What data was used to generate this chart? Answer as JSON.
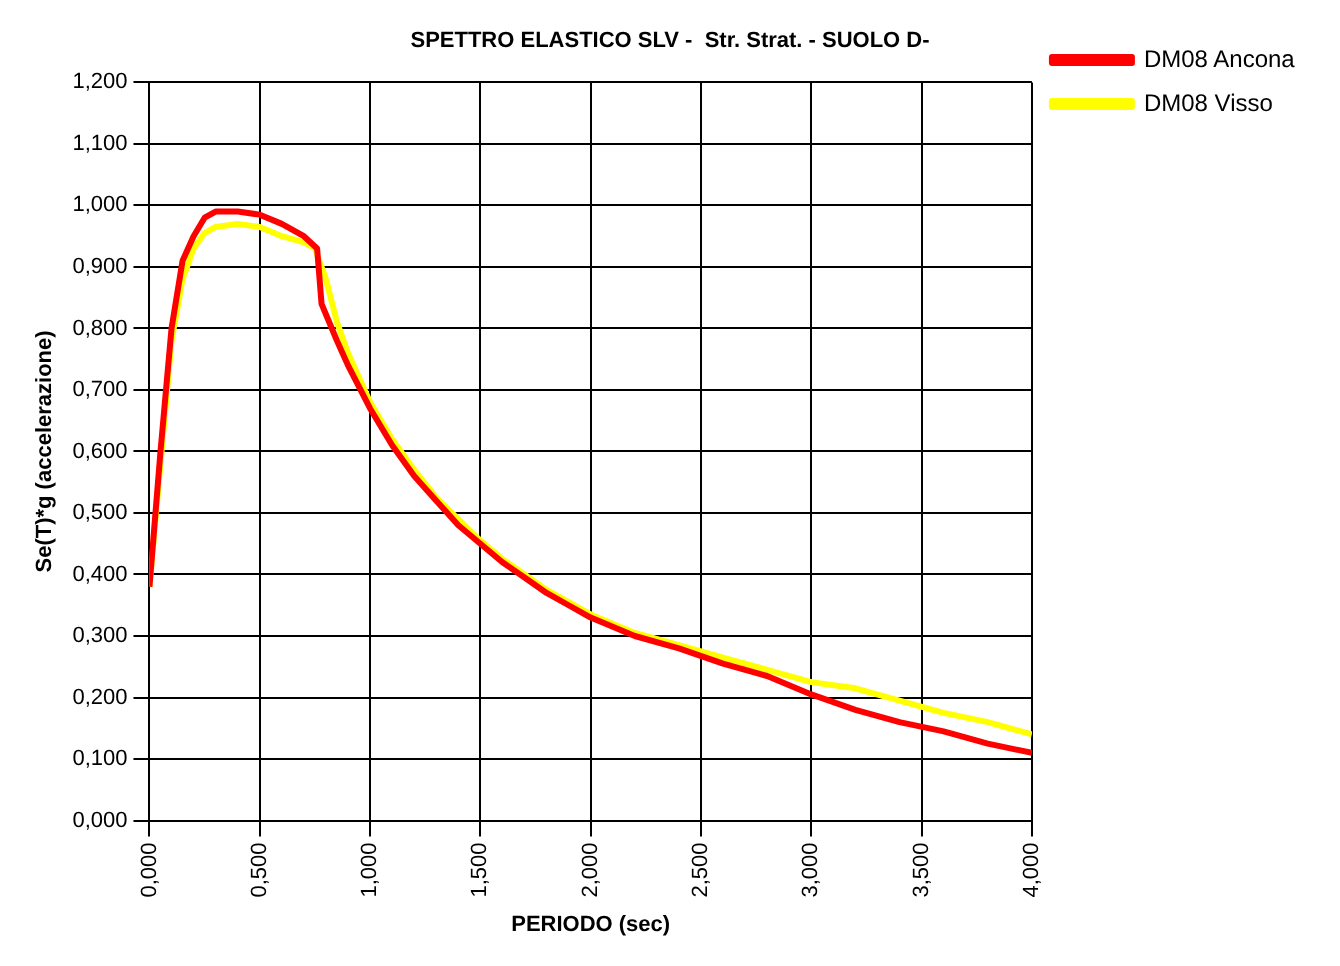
{
  "chart_data": {
    "type": "line",
    "title": "SPETTRO ELASTICO SLV -  Str. Strat. - SUOLO D-",
    "xlabel": "PERIODO (sec)",
    "ylabel": "Se(T)*g (accelerazione)",
    "xlim": [
      0,
      4
    ],
    "xticks": [
      {
        "value": 0,
        "label": "0,000"
      },
      {
        "value": 0.5,
        "label": "0,500"
      },
      {
        "value": 1,
        "label": "1,000"
      },
      {
        "value": 1.5,
        "label": "1,500"
      },
      {
        "value": 2,
        "label": "2,000"
      },
      {
        "value": 2.5,
        "label": "2,500"
      },
      {
        "value": 3,
        "label": "3,000"
      },
      {
        "value": 3.5,
        "label": "3,500"
      },
      {
        "value": 4,
        "label": "4,000"
      }
    ],
    "ylim": [
      0,
      1.2
    ],
    "yticks": [
      {
        "value": 0,
        "label": "0,000"
      },
      {
        "value": 0.1,
        "label": "0,100"
      },
      {
        "value": 0.2,
        "label": "0,200"
      },
      {
        "value": 0.3,
        "label": "0,300"
      },
      {
        "value": 0.4,
        "label": "0,400"
      },
      {
        "value": 0.5,
        "label": "0,500"
      },
      {
        "value": 0.6,
        "label": "0,600"
      },
      {
        "value": 0.7,
        "label": "0,700"
      },
      {
        "value": 0.8,
        "label": "0,800"
      },
      {
        "value": 0.9,
        "label": "0,900"
      },
      {
        "value": 1,
        "label": "1,000"
      },
      {
        "value": 1.1,
        "label": "1,100"
      },
      {
        "value": 1.2,
        "label": "1,200"
      }
    ],
    "grid": true,
    "legend": "top right",
    "marker": "none",
    "line_style": "solid",
    "series": [
      {
        "name": "DM08 Ancona",
        "color": "#ff0000",
        "x": [
          0,
          0.05,
          0.1,
          0.15,
          0.2,
          0.25,
          0.3,
          0.4,
          0.5,
          0.6,
          0.7,
          0.76,
          0.78,
          0.85,
          0.9,
          1.0,
          1.1,
          1.2,
          1.3,
          1.4,
          1.5,
          1.6,
          1.7,
          1.8,
          1.9,
          2.0,
          2.2,
          2.4,
          2.6,
          2.8,
          3.0,
          3.2,
          3.4,
          3.6,
          3.8,
          4.0
        ],
        "values": [
          0.38,
          0.6,
          0.8,
          0.91,
          0.95,
          0.98,
          0.99,
          0.99,
          0.985,
          0.97,
          0.95,
          0.93,
          0.84,
          0.78,
          0.74,
          0.67,
          0.61,
          0.56,
          0.52,
          0.48,
          0.45,
          0.42,
          0.395,
          0.37,
          0.35,
          0.33,
          0.3,
          0.28,
          0.255,
          0.235,
          0.205,
          0.18,
          0.16,
          0.145,
          0.125,
          0.11
        ]
      },
      {
        "name": "DM08 Visso",
        "color": "#ffff00",
        "x": [
          0,
          0.05,
          0.1,
          0.15,
          0.2,
          0.25,
          0.3,
          0.4,
          0.5,
          0.6,
          0.7,
          0.75,
          0.8,
          0.85,
          0.9,
          1.0,
          1.1,
          1.2,
          1.3,
          1.4,
          1.5,
          1.6,
          1.7,
          1.8,
          1.9,
          2.0,
          2.2,
          2.4,
          2.6,
          2.8,
          3.0,
          3.2,
          3.4,
          3.6,
          3.8,
          4.0
        ],
        "values": [
          0.38,
          0.58,
          0.78,
          0.88,
          0.93,
          0.955,
          0.965,
          0.97,
          0.965,
          0.95,
          0.94,
          0.93,
          0.88,
          0.81,
          0.76,
          0.68,
          0.62,
          0.57,
          0.525,
          0.49,
          0.455,
          0.425,
          0.4,
          0.375,
          0.355,
          0.335,
          0.305,
          0.285,
          0.265,
          0.245,
          0.225,
          0.215,
          0.195,
          0.175,
          0.16,
          0.14
        ]
      }
    ]
  }
}
